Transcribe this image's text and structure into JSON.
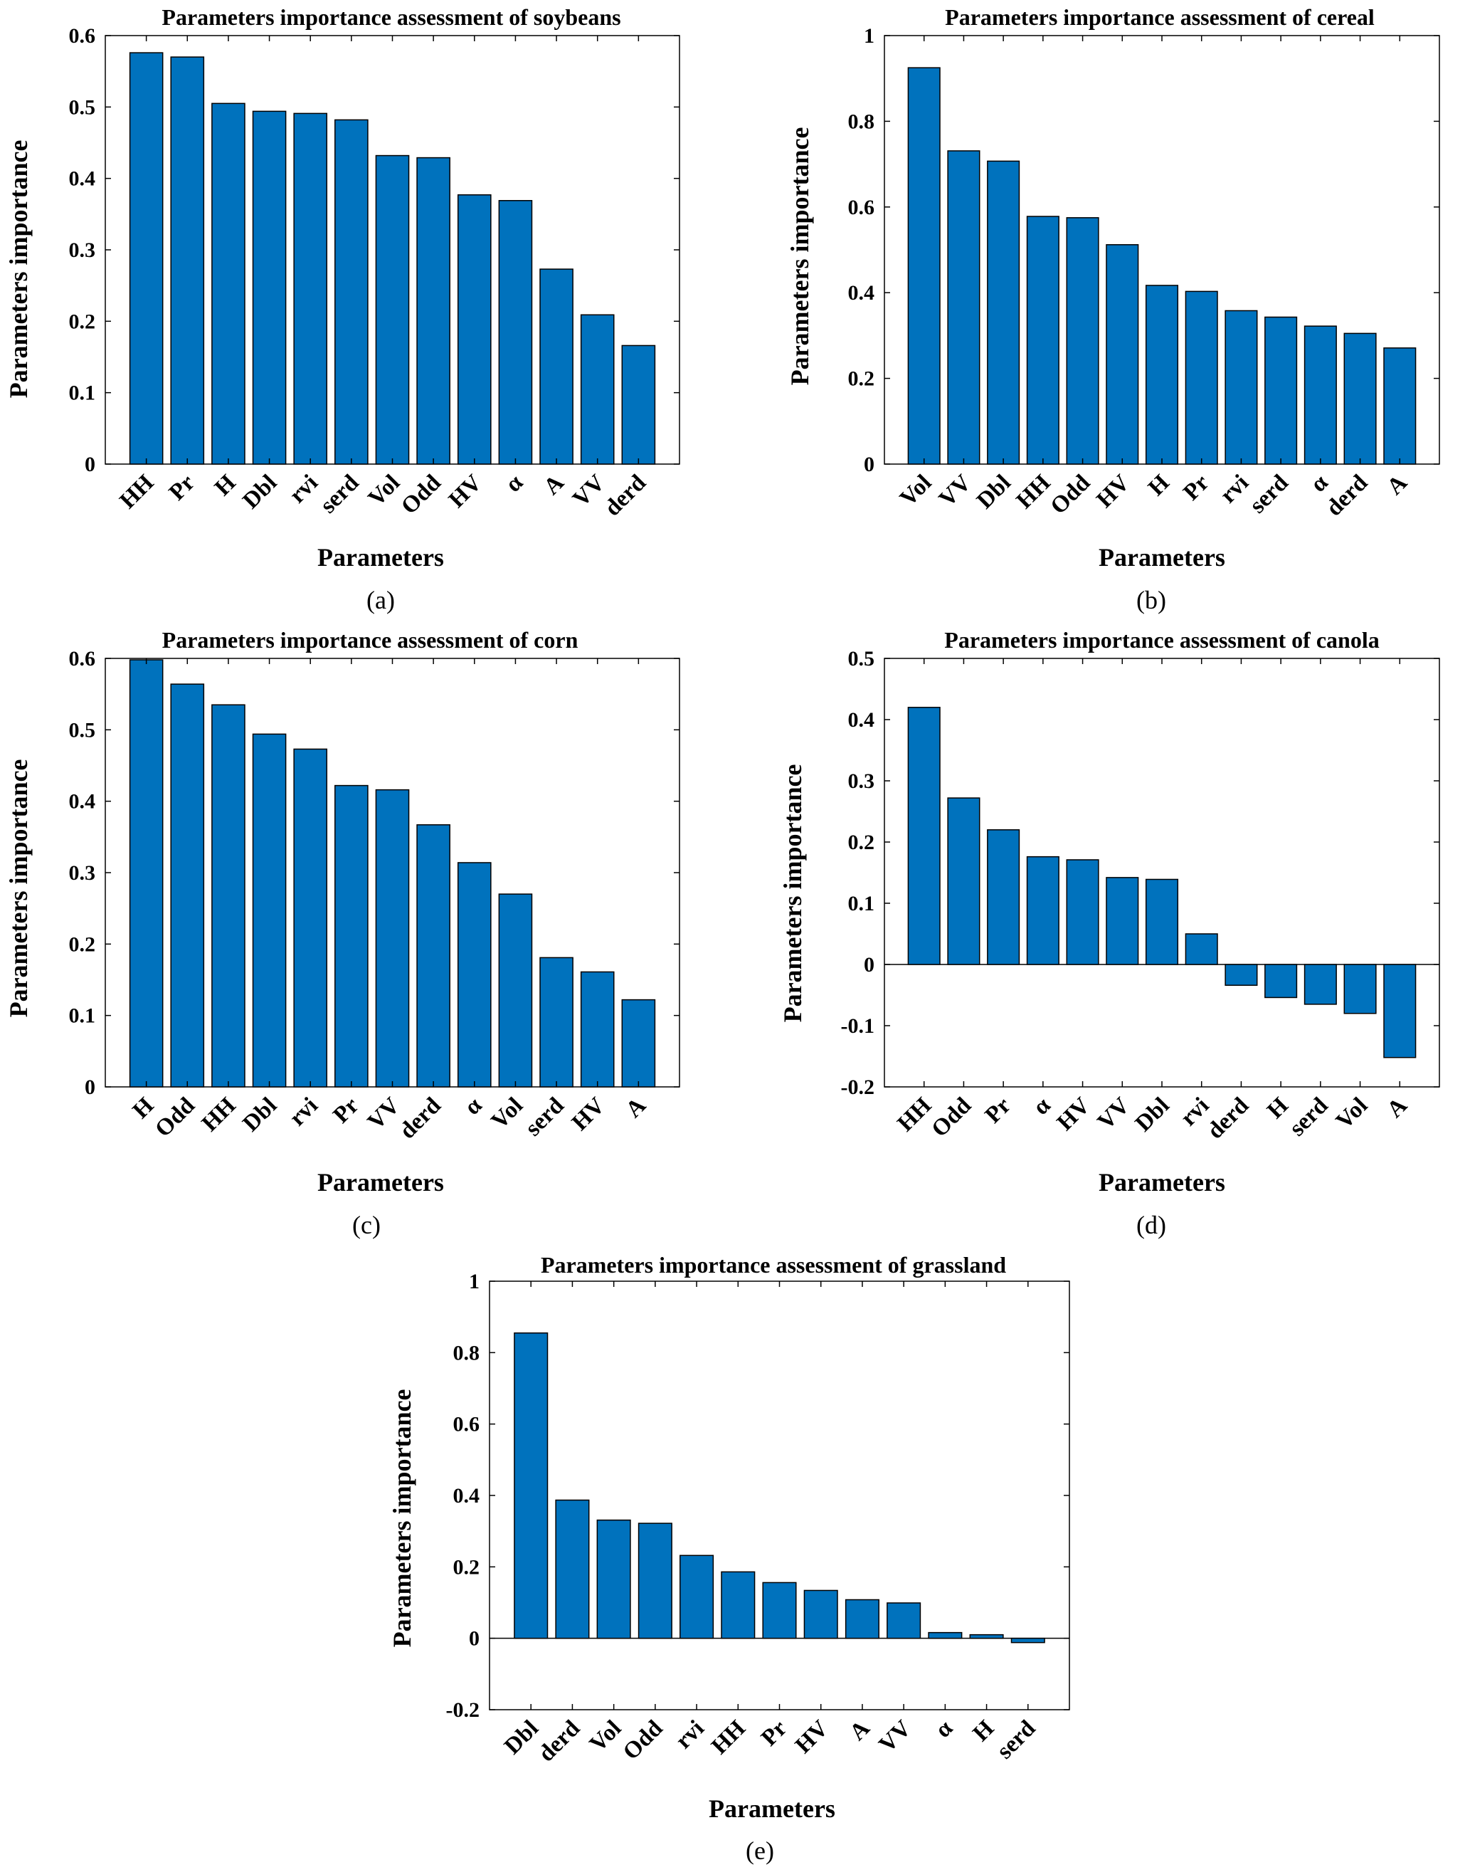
{
  "chart_data": [
    {
      "type": "bar",
      "panel_label": "(a)",
      "title": "Parameters importance assessment of soybeans",
      "xlabel": "Parameters",
      "ylabel": "Parameters importance",
      "ylim": [
        0,
        0.6
      ],
      "yticks": [
        0,
        0.1,
        0.2,
        0.3,
        0.4,
        0.5,
        0.6
      ],
      "ytick_labels": [
        "0",
        "0.1",
        "0.2",
        "0.3",
        "0.4",
        "0.5",
        "0.6"
      ],
      "categories": [
        "HH",
        "Pr",
        "H",
        "Dbl",
        "rvi",
        "serd",
        "Vol",
        "Odd",
        "HV",
        "α",
        "A",
        "VV",
        "derd"
      ],
      "values": [
        0.576,
        0.57,
        0.505,
        0.494,
        0.491,
        0.482,
        0.432,
        0.429,
        0.377,
        0.369,
        0.273,
        0.209,
        0.166
      ]
    },
    {
      "type": "bar",
      "panel_label": "(b)",
      "title": "Parameters importance assessment of cereal",
      "xlabel": "Parameters",
      "ylabel": "Parameters importance",
      "ylim": [
        0,
        1
      ],
      "yticks": [
        0,
        0.2,
        0.4,
        0.6,
        0.8,
        1
      ],
      "ytick_labels": [
        "0",
        "0.2",
        "0.4",
        "0.6",
        "0.8",
        "1"
      ],
      "categories": [
        "Vol",
        "VV",
        "Dbl",
        "HH",
        "Odd",
        "HV",
        "H",
        "Pr",
        "rvi",
        "serd",
        "α",
        "derd",
        "A"
      ],
      "values": [
        0.925,
        0.731,
        0.707,
        0.578,
        0.575,
        0.512,
        0.417,
        0.403,
        0.358,
        0.343,
        0.322,
        0.305,
        0.271
      ]
    },
    {
      "type": "bar",
      "panel_label": "(c)",
      "title": "Parameters importance assessment of corn",
      "xlabel": "Parameters",
      "ylabel": "Parameters importance",
      "ylim": [
        0,
        0.6
      ],
      "yticks": [
        0,
        0.1,
        0.2,
        0.3,
        0.4,
        0.5,
        0.6
      ],
      "ytick_labels": [
        "0",
        "0.1",
        "0.2",
        "0.3",
        "0.4",
        "0.5",
        "0.6"
      ],
      "categories": [
        "H",
        "Odd",
        "HH",
        "Dbl",
        "rvi",
        "Pr",
        "VV",
        "derd",
        "α",
        "Vol",
        "serd",
        "HV",
        "A"
      ],
      "values": [
        0.598,
        0.564,
        0.535,
        0.494,
        0.473,
        0.422,
        0.416,
        0.367,
        0.314,
        0.27,
        0.181,
        0.161,
        0.122
      ]
    },
    {
      "type": "bar",
      "panel_label": "(d)",
      "title": "Parameters importance assessment of canola",
      "xlabel": "Parameters",
      "ylabel": "Parameters importance",
      "ylim": [
        -0.2,
        0.5
      ],
      "yticks": [
        -0.2,
        -0.1,
        0,
        0.1,
        0.2,
        0.3,
        0.4,
        0.5
      ],
      "ytick_labels": [
        "-0.2",
        "-0.1",
        "0",
        "0.1",
        "0.2",
        "0.3",
        "0.4",
        "0.5"
      ],
      "categories": [
        "HH",
        "Odd",
        "Pr",
        "α",
        "HV",
        "VV",
        "Dbl",
        "rvi",
        "derd",
        "H",
        "serd",
        "Vol",
        "A"
      ],
      "values": [
        0.42,
        0.272,
        0.22,
        0.176,
        0.171,
        0.142,
        0.139,
        0.05,
        -0.034,
        -0.054,
        -0.065,
        -0.08,
        -0.152
      ]
    },
    {
      "type": "bar",
      "panel_label": "(e)",
      "title": "Parameters importance assessment of grassland",
      "xlabel": "Parameters",
      "ylabel": "Parameters importance",
      "ylim": [
        -0.2,
        1
      ],
      "yticks": [
        -0.2,
        0,
        0.2,
        0.4,
        0.6,
        0.8,
        1
      ],
      "ytick_labels": [
        "-0.2",
        "0",
        "0.2",
        "0.4",
        "0.6",
        "0.8",
        "1"
      ],
      "categories": [
        "Dbl",
        "derd",
        "Vol",
        "Odd",
        "rvi",
        "HH",
        "Pr",
        "HV",
        "A",
        "VV",
        "α",
        "H",
        "serd"
      ],
      "values": [
        0.855,
        0.387,
        0.331,
        0.322,
        0.232,
        0.186,
        0.156,
        0.134,
        0.108,
        0.099,
        0.016,
        0.01,
        -0.012
      ]
    }
  ]
}
